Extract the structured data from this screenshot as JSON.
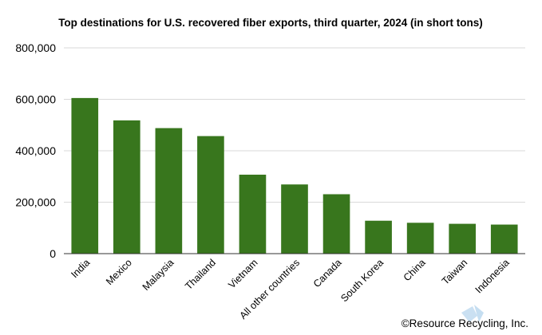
{
  "chart_data": {
    "type": "bar",
    "title": "Top destinations for U.S. recovered fiber exports, third quarter, 2024 (in short tons)",
    "categories": [
      "India",
      "Mexico",
      "Malaysia",
      "Thailand",
      "Vietnam",
      "All other countries",
      "Canada",
      "South Korea",
      "China",
      "Taiwan",
      "Indonesia"
    ],
    "series": [
      {
        "values": [
          605000,
          518000,
          488000,
          457000,
          307000,
          269000,
          231000,
          128000,
          120000,
          116000,
          113000
        ]
      }
    ],
    "ylim": [
      0,
      800000
    ],
    "yticks": [
      0,
      200000,
      400000,
      600000,
      800000
    ],
    "ytick_labels": [
      "0",
      "200,000",
      "400,000",
      "600,000",
      "800,000"
    ],
    "xlabel": "",
    "ylabel": "",
    "grid": true,
    "bar_color": "#38761d",
    "grid_color": "#d9d9d9",
    "credit": "©Resource Recycling, Inc."
  }
}
